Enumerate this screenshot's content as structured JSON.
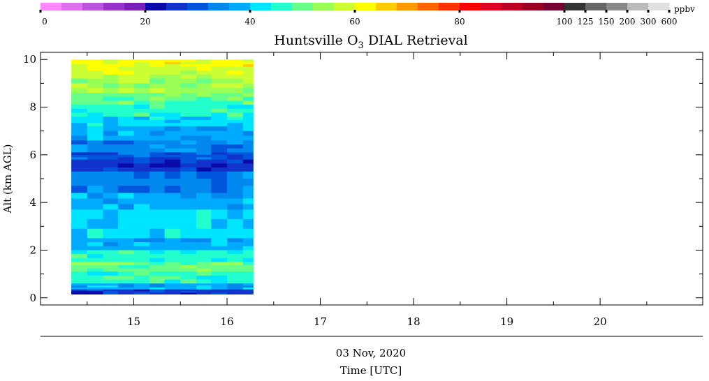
{
  "chart_data": {
    "type": "heatmap",
    "title_main": "Huntsville O",
    "title_sub": "3",
    "title_rest": " DIAL Retrieval",
    "ylabel": "Alt (km AGL)",
    "xlabel": "Time [UTC]",
    "date_label": "03 Nov, 2020",
    "colorbar": {
      "unit": "ppbv",
      "tick_labels": [
        "0",
        "20",
        "40",
        "60",
        "80",
        "100",
        "125",
        "150",
        "200",
        "300",
        "600"
      ],
      "colors": [
        "#ff88ff",
        "#dd70ee",
        "#bb55dd",
        "#9933cc",
        "#7a1fb8",
        "#0a0aa8",
        "#1133cc",
        "#0055dd",
        "#0088ee",
        "#00aaff",
        "#00e5ff",
        "#22ffcc",
        "#66ff88",
        "#99ff55",
        "#ccff33",
        "#ffff00",
        "#ffcc00",
        "#ff9900",
        "#ff6600",
        "#ff3300",
        "#ff0000",
        "#dd0022",
        "#bb0022",
        "#990022",
        "#770033",
        "#333333",
        "#666666",
        "#888888",
        "#bbbbbb",
        "#e0e0e0"
      ]
    },
    "x_axis": {
      "range": [
        14.0,
        21.1
      ],
      "ticks": [
        15,
        16,
        17,
        18,
        19,
        20
      ],
      "unit": "hour UTC"
    },
    "y_axis": {
      "range": [
        -0.3,
        10.3
      ],
      "ticks": [
        0,
        2,
        4,
        6,
        8,
        10
      ]
    },
    "time_columns": [
      14.33,
      14.5,
      14.67,
      14.83,
      15.0,
      15.17,
      15.33,
      15.5,
      15.67,
      15.83,
      16.0,
      16.17
    ],
    "time_start": 14.33,
    "time_end": 16.28,
    "alt_bottom": 0.15,
    "alt_top": 10.0,
    "profile_bands": [
      {
        "alt_top": 10.0,
        "base": "#ffff00"
      },
      {
        "alt_top": 9.7,
        "base": "#ccff33"
      },
      {
        "alt_top": 9.2,
        "base": "#99ff55"
      },
      {
        "alt_top": 8.6,
        "base": "#66ff88"
      },
      {
        "alt_top": 8.1,
        "base": "#22ffcc"
      },
      {
        "alt_top": 7.6,
        "base": "#00e5ff"
      },
      {
        "alt_top": 7.2,
        "base": "#00aaff"
      },
      {
        "alt_top": 6.6,
        "base": "#0088ee"
      },
      {
        "alt_top": 6.1,
        "base": "#0055dd"
      },
      {
        "alt_top": 5.8,
        "base": "#1133cc"
      },
      {
        "alt_top": 5.3,
        "base": "#0088ee"
      },
      {
        "alt_top": 4.4,
        "base": "#00aaff"
      },
      {
        "alt_top": 3.7,
        "base": "#00e5ff"
      },
      {
        "alt_top": 2.5,
        "base": "#00aaff"
      },
      {
        "alt_top": 2.0,
        "base": "#22ffcc"
      },
      {
        "alt_top": 1.5,
        "base": "#66ff88"
      },
      {
        "alt_top": 1.1,
        "base": "#22ffcc"
      },
      {
        "alt_top": 0.6,
        "base": "#00aaff"
      },
      {
        "alt_top": 0.35,
        "base": "#1133cc"
      }
    ]
  }
}
